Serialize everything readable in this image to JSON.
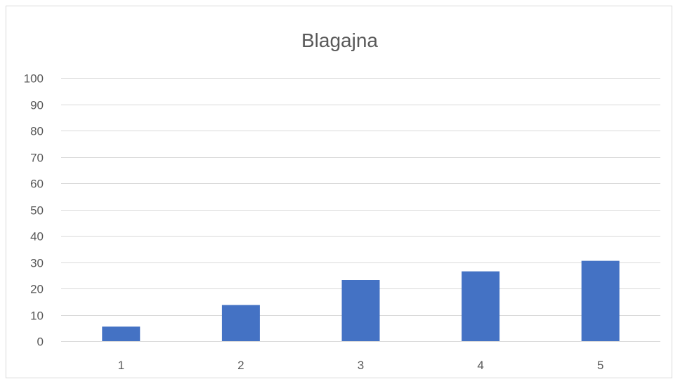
{
  "chart_data": {
    "type": "bar",
    "title": "Blagajna",
    "categories": [
      "1",
      "2",
      "3",
      "4",
      "5"
    ],
    "values": [
      5.5,
      13.7,
      23.2,
      26.5,
      30.5
    ],
    "xlabel": "",
    "ylabel": "",
    "ylim": [
      0,
      100
    ],
    "yticks": [
      0,
      10,
      20,
      30,
      40,
      50,
      60,
      70,
      80,
      90,
      100
    ],
    "grid": true,
    "legend": "none",
    "bar_color": "#4472C4"
  }
}
